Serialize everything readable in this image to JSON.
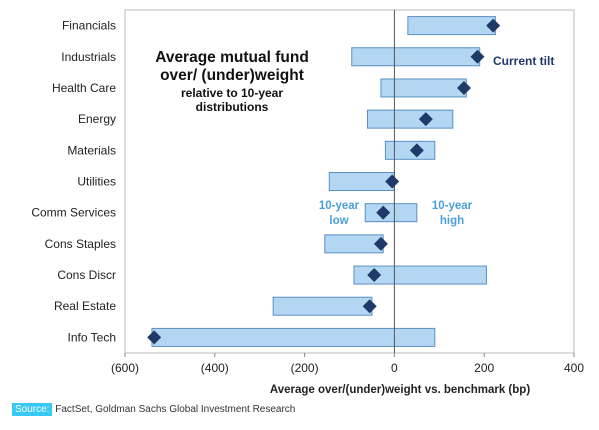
{
  "chart_data": {
    "type": "bar",
    "title": "Average mutual fund over/ (under)weight",
    "subtitle": "relative to 10-year distributions",
    "xlabel": "Average over/(under)weight vs. benchmark (bp)",
    "ylabel": "",
    "xlim": [
      -600,
      400
    ],
    "xticks": [
      -600,
      -400,
      -200,
      0,
      200,
      400
    ],
    "xtick_labels": [
      "(600)",
      "(400)",
      "(200)",
      "0",
      "200",
      "400"
    ],
    "grid": false,
    "categories": [
      "Financials",
      "Industrials",
      "Health Care",
      "Energy",
      "Materials",
      "Utilities",
      "Comm Services",
      "Cons Staples",
      "Cons Discr",
      "Real Estate",
      "Info Tech"
    ],
    "series": [
      {
        "name": "10-year low",
        "values": [
          30,
          -95,
          -30,
          -60,
          -20,
          -145,
          -65,
          -155,
          -90,
          -270,
          -540
        ]
      },
      {
        "name": "10-year high",
        "values": [
          225,
          190,
          160,
          130,
          90,
          0,
          50,
          -25,
          205,
          -50,
          90
        ]
      },
      {
        "name": "Current tilt",
        "values": [
          220,
          185,
          155,
          70,
          50,
          -5,
          -25,
          -30,
          -45,
          -55,
          -535
        ]
      }
    ],
    "annotations": {
      "current_tilt": "Current tilt",
      "low": [
        "10-year",
        "low"
      ],
      "high": [
        "10-year",
        "high"
      ]
    },
    "colors": {
      "range_fill": "#b3d7f2",
      "range_stroke": "#5b8fc4",
      "marker": "#1f3a68",
      "annotation_blue": "#4a9fd8"
    }
  },
  "title_lines": [
    "Average mutual fund",
    "over/ (under)weight"
  ],
  "subtitle_lines": [
    "relative to 10-year",
    "distributions"
  ],
  "source": {
    "label": "Source:",
    "text": "FactSet, Goldman Sachs Global Investment Research"
  }
}
